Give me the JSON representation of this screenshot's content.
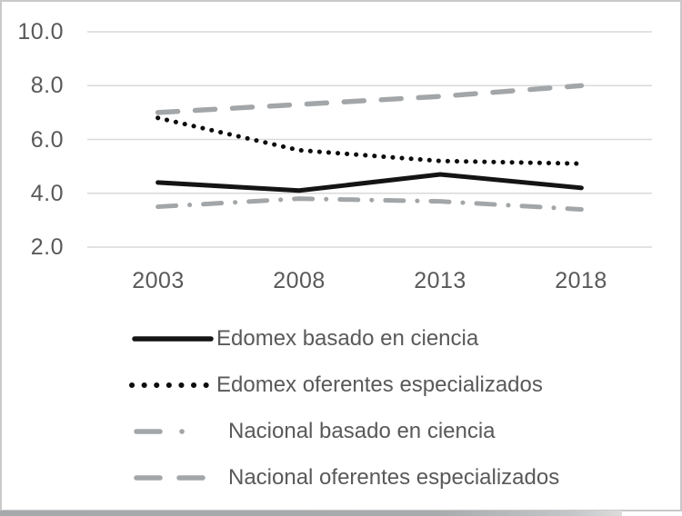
{
  "chart_data": {
    "type": "line",
    "x": [
      2003,
      2008,
      2013,
      2018
    ],
    "x_tick_labels": [
      "2003",
      "2008",
      "2013",
      "2018"
    ],
    "y_ticks": [
      "10.0",
      "8.0",
      "6.0",
      "4.0",
      "2.0"
    ],
    "y_tick_values": [
      10,
      8,
      6,
      4,
      2
    ],
    "ylim": [
      2,
      10
    ],
    "grid": true,
    "legend_position": "bottom-left",
    "title": "",
    "xlabel": "",
    "ylabel": "",
    "series": [
      {
        "name": "Edomex basado en ciencia",
        "values": [
          4.4,
          4.1,
          4.7,
          4.2
        ],
        "color": "#141414",
        "style": "solid"
      },
      {
        "name": "Edomex oferentes especializados",
        "values": [
          6.8,
          5.6,
          5.2,
          5.1
        ],
        "color": "#0d0d0d",
        "style": "dotted"
      },
      {
        "name": "Nacional basado en ciencia",
        "values": [
          3.5,
          3.8,
          3.7,
          3.4
        ],
        "color": "#a3a6a8",
        "style": "dashdot"
      },
      {
        "name": "Nacional oferentes especializados",
        "values": [
          7.0,
          7.3,
          7.6,
          8.0
        ],
        "color": "#a3a6a8",
        "style": "dashed"
      }
    ],
    "colors": {
      "grid": "#d9d9d9",
      "axis_text": "#595959",
      "frame_border": "#c9c9c9",
      "edomex_line": "#0d0d0d",
      "nacional_line": "#a3a6a8"
    }
  }
}
